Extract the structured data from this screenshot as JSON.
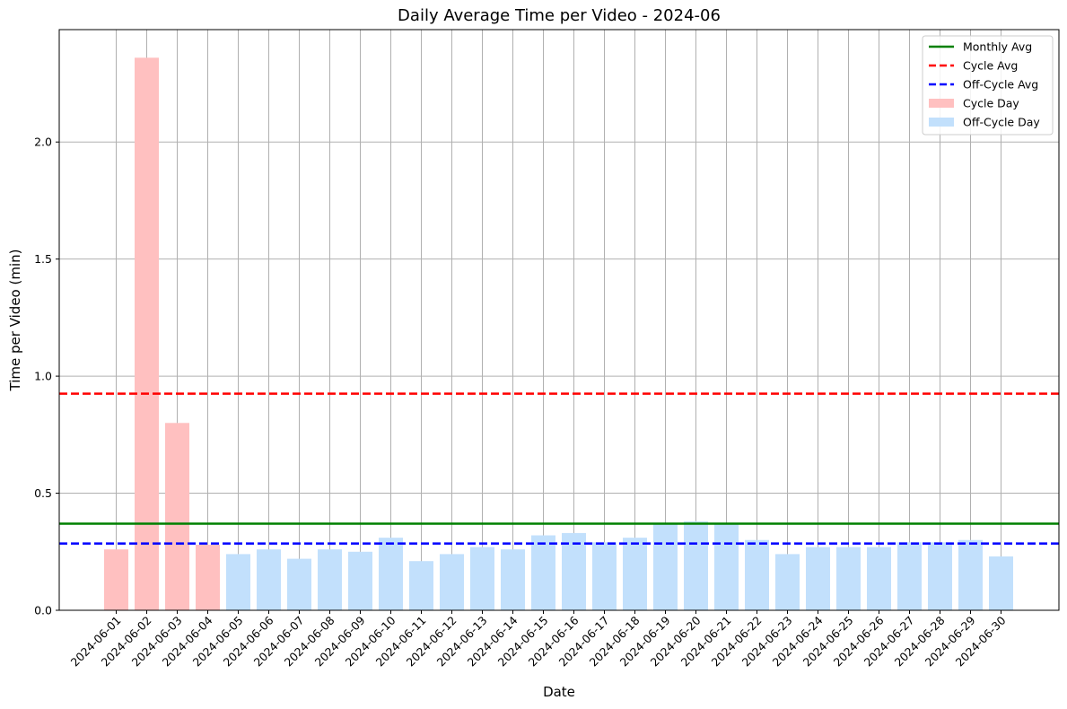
{
  "chart_data": {
    "type": "bar",
    "title": "Daily Average Time per Video - 2024-06",
    "xlabel": "Date",
    "ylabel": "Time per Video (min)",
    "ylim": [
      0,
      2.48
    ],
    "yticks": [
      "0.0",
      "0.5",
      "1.0",
      "1.5",
      "2.0"
    ],
    "grid": true,
    "legend_position": "top-right",
    "categories": [
      "2024-06-01",
      "2024-06-02",
      "2024-06-03",
      "2024-06-04",
      "2024-06-05",
      "2024-06-06",
      "2024-06-07",
      "2024-06-08",
      "2024-06-09",
      "2024-06-10",
      "2024-06-11",
      "2024-06-12",
      "2024-06-13",
      "2024-06-14",
      "2024-06-15",
      "2024-06-16",
      "2024-06-17",
      "2024-06-18",
      "2024-06-19",
      "2024-06-20",
      "2024-06-21",
      "2024-06-22",
      "2024-06-23",
      "2024-06-24",
      "2024-06-25",
      "2024-06-26",
      "2024-06-27",
      "2024-06-28",
      "2024-06-29",
      "2024-06-30"
    ],
    "values": [
      0.26,
      2.36,
      0.8,
      0.28,
      0.24,
      0.26,
      0.22,
      0.26,
      0.25,
      0.31,
      0.21,
      0.24,
      0.27,
      0.26,
      0.32,
      0.33,
      0.29,
      0.31,
      0.37,
      0.38,
      0.37,
      0.3,
      0.24,
      0.27,
      0.27,
      0.27,
      0.29,
      0.29,
      0.3,
      0.23
    ],
    "day_type": [
      "cycle",
      "cycle",
      "cycle",
      "cycle",
      "off",
      "off",
      "off",
      "off",
      "off",
      "off",
      "off",
      "off",
      "off",
      "off",
      "off",
      "off",
      "off",
      "off",
      "off",
      "off",
      "off",
      "off",
      "off",
      "off",
      "off",
      "off",
      "off",
      "off",
      "off",
      "off"
    ],
    "reference_lines": [
      {
        "name": "Monthly Avg",
        "value": 0.37,
        "color": "#008000",
        "style": "solid"
      },
      {
        "name": "Cycle Avg",
        "value": 0.925,
        "color": "#ff0000",
        "style": "dashed"
      },
      {
        "name": "Off-Cycle Avg",
        "value": 0.285,
        "color": "#0000ff",
        "style": "dashed"
      }
    ],
    "bar_series": [
      {
        "name": "Cycle Day",
        "color": "#ffc0c0"
      },
      {
        "name": "Off-Cycle Day",
        "color": "#c2e0fc"
      }
    ]
  }
}
